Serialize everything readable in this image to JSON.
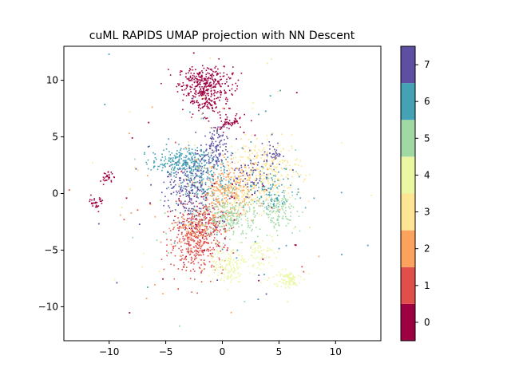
{
  "chart_data": {
    "type": "scatter",
    "title": "cuML RAPIDS UMAP projection with NN Descent",
    "xlabel": "",
    "ylabel": "",
    "xlim": [
      -14,
      14
    ],
    "ylim": [
      -13,
      13
    ],
    "x_ticks": [
      -10,
      -5,
      0,
      5,
      10
    ],
    "y_ticks": [
      -10,
      -5,
      0,
      5,
      10
    ],
    "grid": false,
    "colorbar": {
      "colormap": "Spectral",
      "range": [
        -0.5,
        7.5
      ],
      "ticks": [
        0,
        1,
        2,
        3,
        4,
        5,
        6,
        7
      ],
      "colors": [
        "#9e0142",
        "#e04f4a",
        "#fba35d",
        "#fee593",
        "#ebf7a2",
        "#a1d9a4",
        "#45a1b4",
        "#5e4fa2"
      ]
    },
    "clusters": [
      {
        "label": 0,
        "center": [
          -1.5,
          9.8
        ],
        "spread": [
          1.2,
          0.7
        ],
        "weight": 300
      },
      {
        "label": 0,
        "center": [
          -1.5,
          8.2
        ],
        "spread": [
          0.8,
          0.6
        ],
        "weight": 120
      },
      {
        "label": 0,
        "center": [
          0.5,
          6.3
        ],
        "spread": [
          0.8,
          0.4
        ],
        "weight": 60
      },
      {
        "label": 0,
        "center": [
          -10.2,
          1.4
        ],
        "spread": [
          0.25,
          0.25
        ],
        "weight": 30
      },
      {
        "label": 0,
        "center": [
          -11.1,
          -0.8
        ],
        "spread": [
          0.3,
          0.3
        ],
        "weight": 30
      },
      {
        "label": 0,
        "center": [
          -2.0,
          -2.5
        ],
        "spread": [
          1.2,
          1.2
        ],
        "weight": 80
      },
      {
        "label": 1,
        "center": [
          -2.3,
          -4.4
        ],
        "spread": [
          1.2,
          1.3
        ],
        "weight": 350
      },
      {
        "label": 1,
        "center": [
          -1.2,
          -2.2
        ],
        "spread": [
          1.0,
          0.8
        ],
        "weight": 100
      },
      {
        "label": 2,
        "center": [
          0.4,
          0.3
        ],
        "spread": [
          1.2,
          1.1
        ],
        "weight": 280
      },
      {
        "label": 2,
        "center": [
          -2.6,
          -3.3
        ],
        "spread": [
          0.9,
          0.7
        ],
        "weight": 60
      },
      {
        "label": 3,
        "center": [
          3.8,
          2.0
        ],
        "spread": [
          1.6,
          1.3
        ],
        "weight": 320
      },
      {
        "label": 3,
        "center": [
          1.2,
          -0.4
        ],
        "spread": [
          1.3,
          1.0
        ],
        "weight": 100
      },
      {
        "label": 4,
        "center": [
          0.4,
          -6.2
        ],
        "spread": [
          0.9,
          0.8
        ],
        "weight": 150
      },
      {
        "label": 4,
        "center": [
          5.7,
          -7.6
        ],
        "spread": [
          0.6,
          0.4
        ],
        "weight": 90
      },
      {
        "label": 4,
        "center": [
          3.6,
          -5.4
        ],
        "spread": [
          0.6,
          0.9
        ],
        "weight": 60
      },
      {
        "label": 5,
        "center": [
          0.6,
          -2.0
        ],
        "spread": [
          1.3,
          1.0
        ],
        "weight": 260
      },
      {
        "label": 5,
        "center": [
          5.0,
          -1.5
        ],
        "spread": [
          0.8,
          0.8
        ],
        "weight": 130
      },
      {
        "label": 6,
        "center": [
          -3.5,
          2.8
        ],
        "spread": [
          1.4,
          0.6
        ],
        "weight": 260
      },
      {
        "label": 6,
        "center": [
          -1.5,
          1.2
        ],
        "spread": [
          1.2,
          1.0
        ],
        "weight": 140
      },
      {
        "label": 6,
        "center": [
          4.5,
          0.3
        ],
        "spread": [
          1.2,
          0.9
        ],
        "weight": 100
      },
      {
        "label": 7,
        "center": [
          -3.0,
          0.2
        ],
        "spread": [
          1.0,
          1.4
        ],
        "weight": 200
      },
      {
        "label": 7,
        "center": [
          -0.8,
          3.8
        ],
        "spread": [
          0.6,
          1.0
        ],
        "weight": 120
      },
      {
        "label": 7,
        "center": [
          4.5,
          3.5
        ],
        "spread": [
          0.4,
          0.5
        ],
        "weight": 40
      },
      {
        "label": 7,
        "center": [
          2.5,
          1.6
        ],
        "spread": [
          0.8,
          0.8
        ],
        "weight": 60
      }
    ],
    "scattered_outliers": 240
  }
}
